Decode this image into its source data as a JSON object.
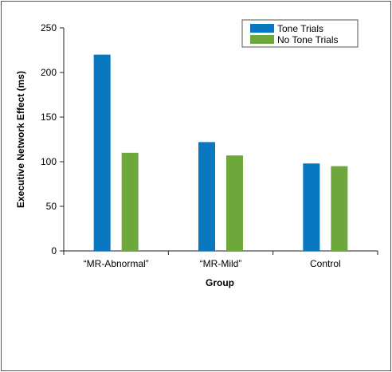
{
  "chart_data": {
    "type": "bar",
    "title": "",
    "xlabel": "Group",
    "ylabel": "Executive Network Effect (ms)",
    "categories": [
      "“MR-Abnormal”",
      "“MR-Mild”",
      "Control"
    ],
    "series": [
      {
        "name": "Tone Trials",
        "color": "#0a78c0",
        "values": [
          220,
          122,
          98
        ]
      },
      {
        "name": "No Tone Trials",
        "color": "#6ea83c",
        "values": [
          110,
          107,
          95
        ]
      }
    ],
    "ylim": [
      0,
      250
    ],
    "yticks": [
      0,
      50,
      100,
      150,
      200,
      250
    ],
    "grid": false,
    "legend_position": "top-right"
  }
}
